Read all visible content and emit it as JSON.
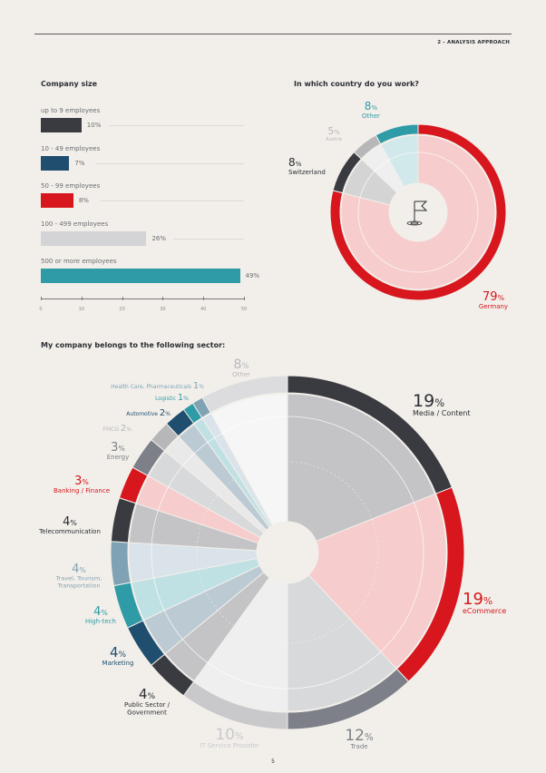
{
  "header": {
    "section": "2 - ANALYSIS APPROACH"
  },
  "page_number": "5",
  "flag_icon": "flag-icon",
  "chart_data": [
    {
      "type": "bar",
      "title": "Company size",
      "orientation": "horizontal",
      "categories": [
        "up to 9 employees",
        "10 - 49 employees",
        "50 - 99 employees",
        "100 - 499 employees",
        "500 or more employees"
      ],
      "values": [
        10,
        7,
        8,
        26,
        49
      ],
      "value_labels": [
        "10%",
        "7%",
        "8%",
        "26%",
        "49%"
      ],
      "colors": [
        "#3a3b41",
        "#1f4e6e",
        "#d7161d",
        "#d4d4d6",
        "#2e9ba6"
      ],
      "xlim": [
        0,
        50
      ],
      "xticks": [
        "0",
        "10",
        "20",
        "30",
        "40",
        "50"
      ]
    },
    {
      "type": "pie",
      "title": "In which country do you work?",
      "style": "donut",
      "slices": [
        {
          "name": "Germany",
          "value": 79,
          "num": "79",
          "pct": "%",
          "color": "#d7161d"
        },
        {
          "name": "Switzerland",
          "value": 8,
          "num": "8",
          "pct": "%",
          "color": "#3a3b41"
        },
        {
          "name": "Austria",
          "value": 5,
          "num": "5",
          "pct": "%",
          "color": "#b7b7ba"
        },
        {
          "name": "Other",
          "value": 8,
          "num": "8",
          "pct": "%",
          "color": "#2e9ba6"
        }
      ]
    },
    {
      "type": "pie",
      "title": "My company belongs to the following sector:",
      "style": "donut",
      "slices": [
        {
          "name": "Media / Content",
          "value": 19,
          "num": "19",
          "pct": "%",
          "color": "#3a3b41"
        },
        {
          "name": "eCommerce",
          "value": 19,
          "num": "19",
          "pct": "%",
          "color": "#d7161d"
        },
        {
          "name": "Trade",
          "value": 12,
          "num": "12",
          "pct": "%",
          "color": "#7d8088"
        },
        {
          "name": "IT Service Provider",
          "value": 10,
          "num": "10",
          "pct": "%",
          "color": "#c9c9cc"
        },
        {
          "name": "Public Sector / Government",
          "value": 4,
          "num": "4",
          "pct": "%",
          "color": "#3a3b41"
        },
        {
          "name": "Marketing",
          "value": 4,
          "num": "4",
          "pct": "%",
          "color": "#1f4e6e"
        },
        {
          "name": "High-tech",
          "value": 4,
          "num": "4",
          "pct": "%",
          "color": "#2e9ba6"
        },
        {
          "name": "Travel, Tourism, Transportation",
          "value": 4,
          "num": "4",
          "pct": "%",
          "color": "#7fa3b4"
        },
        {
          "name": "Telecommunication",
          "value": 4,
          "num": "4",
          "pct": "%",
          "color": "#3a3b41"
        },
        {
          "name": "Banking / Finance",
          "value": 3,
          "num": "3",
          "pct": "%",
          "color": "#d7161d"
        },
        {
          "name": "Energy",
          "value": 3,
          "num": "3",
          "pct": "%",
          "color": "#7d8088"
        },
        {
          "name": "FMCG",
          "value": 2,
          "num": "2",
          "pct": "%",
          "color": "#b7b7ba"
        },
        {
          "name": "Automotive",
          "value": 2,
          "num": "2",
          "pct": "%",
          "color": "#1f4e6e"
        },
        {
          "name": "Logistic",
          "value": 1,
          "num": "1",
          "pct": "%",
          "color": "#2e9ba6"
        },
        {
          "name": "Health Care, Pharmaceuticals",
          "value": 1,
          "num": "1",
          "pct": "%",
          "color": "#7fa3b4"
        },
        {
          "name": "Other",
          "value": 8,
          "num": "8",
          "pct": "%",
          "color": "#dcdcde"
        }
      ]
    }
  ]
}
